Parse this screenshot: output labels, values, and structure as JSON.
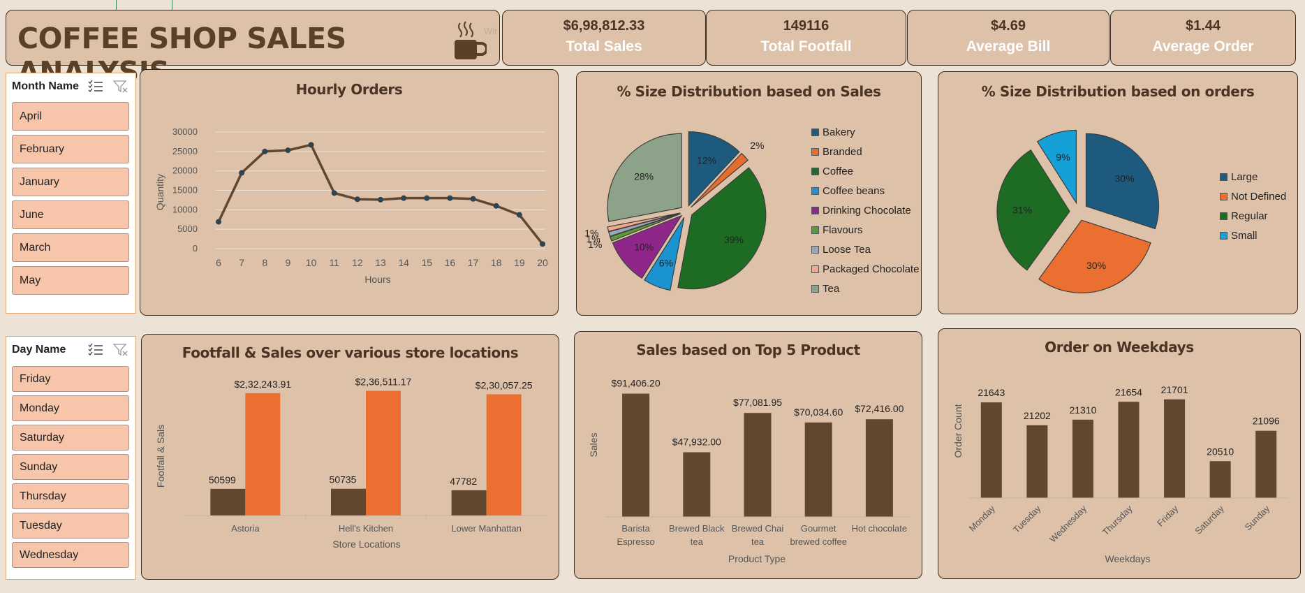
{
  "header": {
    "title": "COFFEE SHOP SALES ANALYSIS",
    "watermark": "Window Snip"
  },
  "kpis": [
    {
      "value": "$6,98,812.33",
      "label": "Total Sales"
    },
    {
      "value": "149116",
      "label": "Total Footfall"
    },
    {
      "value": "$4.69",
      "label": "Average Bill"
    },
    {
      "value": "$1.44",
      "label": "Average Order"
    }
  ],
  "slicers": {
    "month": {
      "header": "Month Name",
      "items": [
        "April",
        "February",
        "January",
        "June",
        "March",
        "May"
      ]
    },
    "day": {
      "header": "Day Name",
      "items": [
        "Friday",
        "Monday",
        "Saturday",
        "Sunday",
        "Thursday",
        "Tuesday",
        "Wednesday"
      ]
    }
  },
  "colors": {
    "brown": "#614630",
    "orange": "#ea6f31",
    "card": "#ddc1a9",
    "border": "#3c2a1c"
  },
  "chart_data": [
    {
      "id": "hourly",
      "type": "line",
      "title": "Hourly Orders",
      "xlabel": "Hours",
      "ylabel": "Quantity",
      "ylim": [
        0,
        30000
      ],
      "yticks": [
        "0",
        "5000",
        "10000",
        "15000",
        "20000",
        "25000",
        "30000"
      ],
      "x": [
        "6",
        "7",
        "8",
        "9",
        "10",
        "11",
        "12",
        "13",
        "14",
        "15",
        "16",
        "17",
        "18",
        "19",
        "20"
      ],
      "values": [
        6900,
        19500,
        25000,
        25300,
        26700,
        14300,
        12700,
        12600,
        13000,
        13000,
        13000,
        12800,
        11000,
        8700,
        1200
      ],
      "grid": true
    },
    {
      "id": "size_sales",
      "type": "pie",
      "title": "% Size Distribution based on Sales",
      "labels": [
        "Bakery",
        "Branded",
        "Coffee",
        "Coffee beans",
        "Drinking Chocolate",
        "Flavours",
        "Loose Tea",
        "Packaged Chocolate",
        "Tea"
      ],
      "values": [
        12,
        2,
        39,
        6,
        10,
        1,
        1,
        1,
        28
      ],
      "data_labels": [
        "12%",
        "2%",
        "39%",
        "6%",
        "10%",
        "1%",
        "1%",
        "1%",
        "28%"
      ],
      "colors": [
        "#1d5a7e",
        "#e56d2f",
        "#1e6b24",
        "#1a93d0",
        "#8e2789",
        "#5a9b37",
        "#9fa3b7",
        "#f0a98c",
        "#8ca389"
      ],
      "legend": "right"
    },
    {
      "id": "size_orders",
      "type": "pie",
      "title": "% Size Distribution based on orders",
      "labels": [
        "Large",
        "Not Defined",
        "Regular",
        "Small"
      ],
      "values": [
        30,
        30,
        31,
        9
      ],
      "data_labels": [
        "30%",
        "30%",
        "31%",
        "9%"
      ],
      "colors": [
        "#1d5a7e",
        "#ea6f31",
        "#1e6b24",
        "#16a0d8"
      ],
      "legend": "right"
    },
    {
      "id": "locations",
      "type": "bar",
      "title": "Footfall & Sales over various store locations",
      "xlabel": "Store Locations",
      "ylabel": "Footfall & Sals",
      "categories": [
        "Astoria",
        "Hell's Kitchen",
        "Lower Manhattan"
      ],
      "series": [
        {
          "values": [
            50599,
            50735,
            47782
          ],
          "labels": [
            "50599",
            "50735",
            "47782"
          ],
          "color": "#614630"
        },
        {
          "values": [
            232243.91,
            236511.17,
            230057.25
          ],
          "labels": [
            "$2,32,243.91",
            "$2,36,511.17",
            "$2,30,057.25"
          ],
          "color": "#ea6f31"
        }
      ],
      "ylim": [
        0,
        240000
      ]
    },
    {
      "id": "top5",
      "type": "bar",
      "title": "Sales based on Top 5 Product",
      "xlabel": "Product Type",
      "ylabel": "Sales",
      "categories": [
        [
          "Barista",
          "Espresso"
        ],
        [
          "Brewed Black",
          "tea"
        ],
        [
          "Brewed Chai",
          "tea"
        ],
        [
          "Gourmet",
          "brewed coffee"
        ],
        [
          "Hot chocolate"
        ]
      ],
      "values": [
        91406.2,
        47932.0,
        77081.95,
        70034.6,
        72416.0
      ],
      "data_labels": [
        "$91,406.20",
        "$47,932.00",
        "$77,081.95",
        "$70,034.60",
        "$72,416.00"
      ],
      "ylim": [
        0,
        100000
      ]
    },
    {
      "id": "weekdays",
      "type": "bar",
      "title": "Order on Weekdays",
      "xlabel": "Weekdays",
      "ylabel": "Order Count",
      "categories": [
        "Monday",
        "Tuesday",
        "Wednesday",
        "Thursday",
        "Friday",
        "Saturday",
        "Sunday"
      ],
      "values": [
        21643,
        21202,
        21310,
        21654,
        21701,
        20510,
        21096
      ],
      "data_labels": [
        "21643",
        "21202",
        "21310",
        "21654",
        "21701",
        "20510",
        "21096"
      ],
      "ylim": [
        19800,
        21900
      ]
    }
  ]
}
